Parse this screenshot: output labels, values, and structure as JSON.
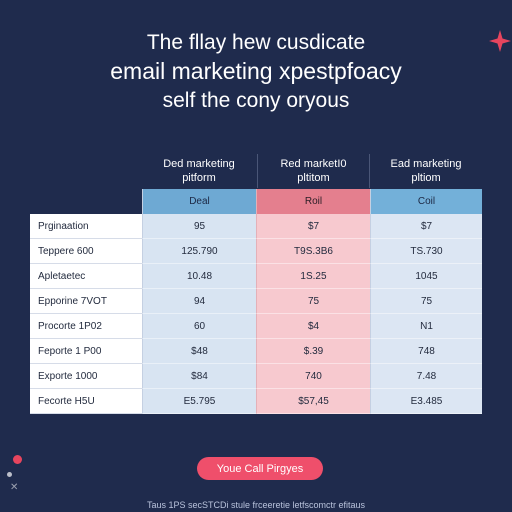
{
  "headline": {
    "line1": "The fllay hew cusdicate",
    "line2": "email marketing xpestpfoacy",
    "line3": "self the cony oryous"
  },
  "columns": [
    {
      "header": "Ded marketing pitform",
      "sub": "Deal"
    },
    {
      "header": "Red marketI0 pltitom",
      "sub": "Roil"
    },
    {
      "header": "Ead marketing pltiom",
      "sub": "Coil"
    }
  ],
  "rows": [
    {
      "label": "Prginaation",
      "values": [
        "95",
        "$7",
        "$7"
      ]
    },
    {
      "label": "Teppere 600",
      "values": [
        "125.790",
        "T9S.3B6",
        "TS.730"
      ]
    },
    {
      "label": "Apletaetec",
      "values": [
        "10.48",
        "1S.25",
        "1045"
      ]
    },
    {
      "label": "Epporine 7VOT",
      "values": [
        "94",
        "75",
        "75"
      ]
    },
    {
      "label": "Procorte 1P02",
      "values": [
        "60",
        "$4",
        "N1"
      ]
    },
    {
      "label": "Feporte 1 P00",
      "values": [
        "$48",
        "$.39",
        "748"
      ]
    },
    {
      "label": "Exporte 1000",
      "values": [
        "$84",
        "740",
        "7.48"
      ]
    },
    {
      "label": "Fecorte H5U",
      "values": [
        "E5.795",
        "$57,45",
        "E3.485"
      ]
    }
  ],
  "cta_label": "Youe Call Pirgyes",
  "footer_text": "Taus 1PS secSTCDi stule frceeretie letfscomctr efitaus",
  "icons": {
    "sparkle": "sparkle-icon"
  },
  "colors": {
    "background": "#1f2b4d",
    "accent": "#ef4f6b",
    "col1": "#6ea9d3",
    "col2": "#e47f8e",
    "col3": "#73b0d9"
  }
}
